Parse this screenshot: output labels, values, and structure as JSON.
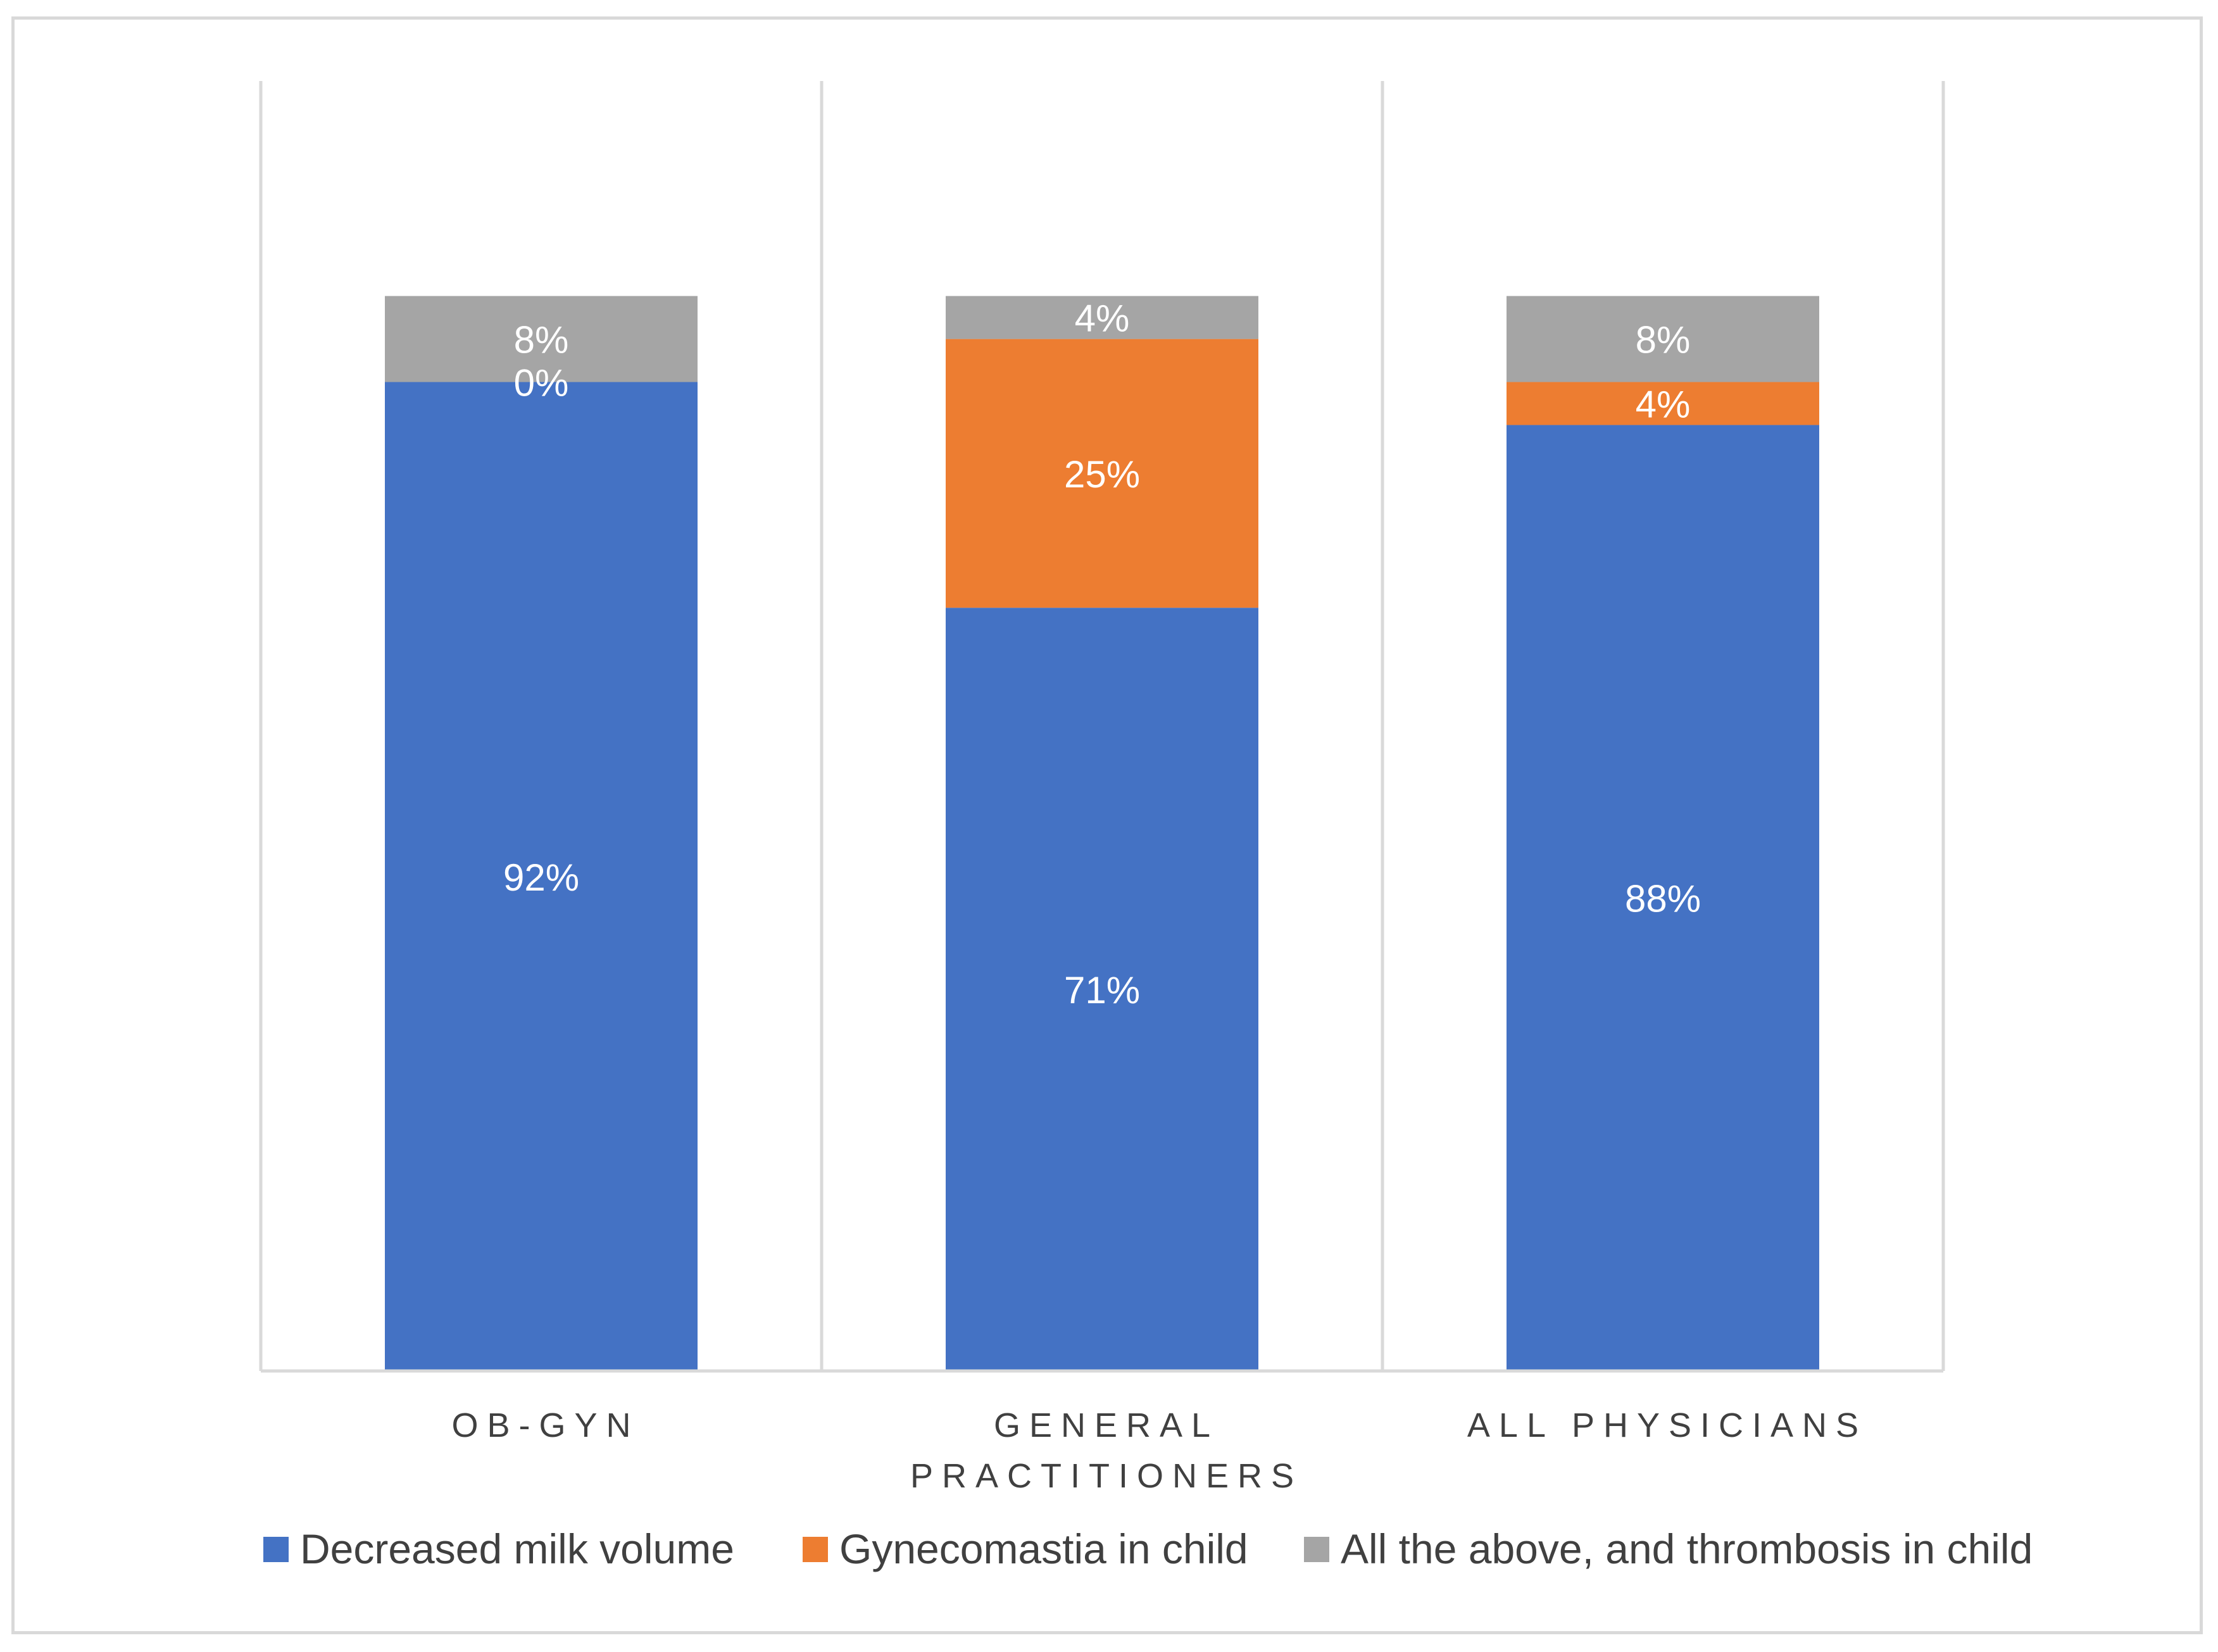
{
  "chart_data": {
    "type": "bar",
    "stacked": true,
    "orientation": "vertical",
    "categories": [
      [
        "OB-GYN"
      ],
      [
        "GENERAL",
        "PRACTITIONERS"
      ],
      [
        "ALL PHYSICIANS"
      ]
    ],
    "series": [
      {
        "name": "Decreased milk volume",
        "color": "#4472C4",
        "values": [
          92,
          71,
          88
        ],
        "labels": [
          "92%",
          "71%",
          "88%"
        ]
      },
      {
        "name": "Gynecomastia in child",
        "color": "#ED7D31",
        "values": [
          0,
          25,
          4
        ],
        "labels": [
          "0%",
          "25%",
          "4%"
        ]
      },
      {
        "name": "All the above, and thrombosis in child",
        "color": "#A5A5A5",
        "values": [
          8,
          4,
          8
        ],
        "labels": [
          "8%",
          "4%",
          "8%"
        ]
      }
    ],
    "ylim": [
      0,
      120
    ],
    "grid": "vertical-category-separators",
    "legend_position": "bottom",
    "xlabel": "",
    "ylabel": ""
  }
}
